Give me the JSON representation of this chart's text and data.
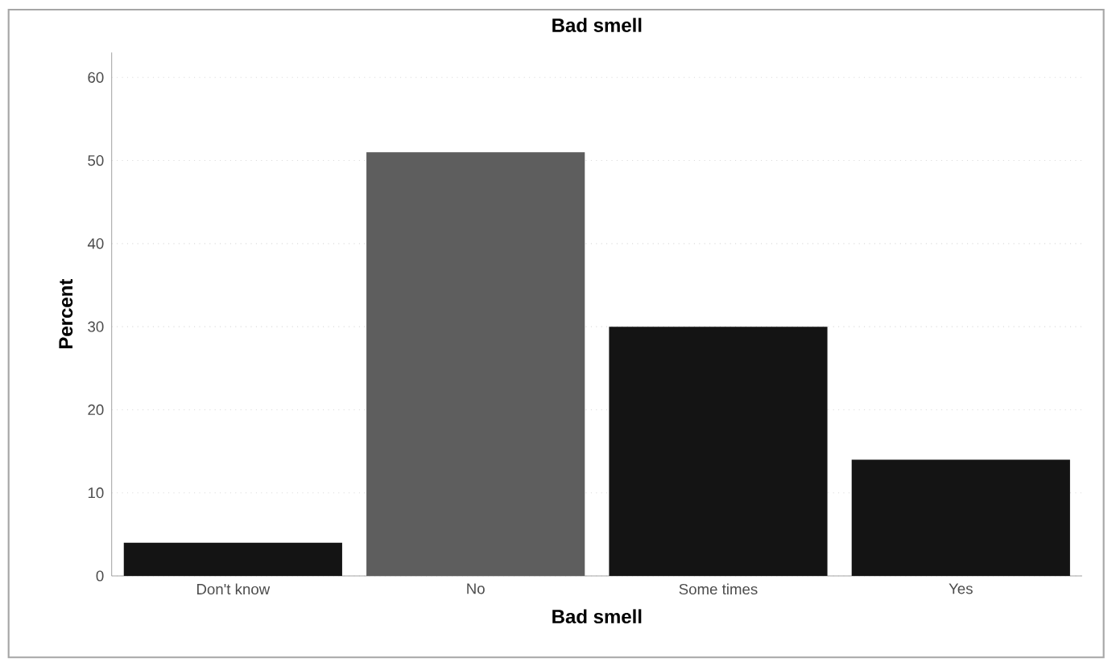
{
  "chart_data": {
    "type": "bar",
    "title": "Bad smell",
    "xlabel": "Bad smell",
    "ylabel": "Percent",
    "categories": [
      "Don't know",
      "No",
      "Some times",
      "Yes"
    ],
    "values": [
      4,
      51,
      30,
      14
    ],
    "colors": [
      "#141414",
      "#5e5e5e",
      "#141414",
      "#141414"
    ],
    "ylim": [
      0,
      63
    ],
    "yticks": [
      0,
      10,
      20,
      30,
      40,
      50,
      60
    ],
    "grid": "y"
  }
}
